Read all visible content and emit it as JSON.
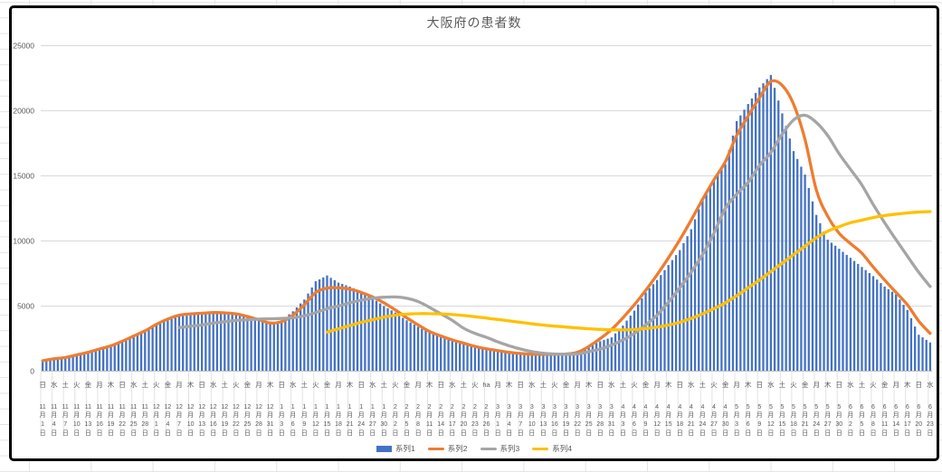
{
  "chart": {
    "title": "大阪府の患者数",
    "title_color": "#595959",
    "border_color": "#000000",
    "axis": {
      "y_tick_labels": [
        "0",
        "5000",
        "10000",
        "15000",
        "20000",
        "25000"
      ],
      "y_tick_values": [
        0,
        5000,
        10000,
        15000,
        20000,
        25000
      ],
      "y_max": 25000,
      "label_color": "#595959",
      "gridline_color": "#d9d9d9",
      "axis_line_color": "#bfbfbf",
      "tick_separator_color": "#e2e2e2"
    },
    "legend": [
      {
        "label": "系列1",
        "color": "#4472C4",
        "swatch": "bar"
      },
      {
        "label": "系列2",
        "color": "#ED7D31",
        "swatch": "line"
      },
      {
        "label": "系列3",
        "color": "#A5A5A5",
        "swatch": "line"
      },
      {
        "label": "系列4",
        "color": "#FFC000",
        "swatch": "line"
      }
    ]
  },
  "chart_data": {
    "type": "bar",
    "subtype": "combo-bar-and-lines",
    "title": "大阪府の患者数",
    "xlabel": "",
    "ylabel": "",
    "ylim": [
      0,
      25000
    ],
    "grid": "horizontal",
    "legend_position": "bottom",
    "x_tick_interval_days": 3,
    "x_labels_dow": [
      "日",
      "水",
      "土",
      "火",
      "金",
      "月",
      "木",
      "日",
      "水",
      "土",
      "火",
      "金",
      "月",
      "木",
      "日",
      "水",
      "土",
      "火",
      "金",
      "月",
      "木",
      "日",
      "水",
      "土",
      "火",
      "金",
      "月",
      "木",
      "日",
      "水",
      "土",
      "火",
      "金",
      "月",
      "木",
      "日",
      "水",
      "土",
      "火",
      "ha",
      "月",
      "木",
      "日",
      "水",
      "土",
      "火",
      "金",
      "月",
      "木",
      "日",
      "水",
      "土",
      "火",
      "金",
      "月",
      "木",
      "日",
      "水",
      "土",
      "火",
      "金",
      "月",
      "木",
      "日",
      "水",
      "土",
      "火",
      "金",
      "月",
      "木",
      "日",
      "水",
      "土",
      "火",
      "金",
      "月",
      "木",
      "日",
      "水"
    ],
    "x_labels_date": [
      "11月1日",
      "11月4日",
      "11月7日",
      "11月10日",
      "11月13日",
      "11月16日",
      "11月19日",
      "11月22日",
      "11月25日",
      "11月28日",
      "12月1日",
      "12月4日",
      "12月7日",
      "12月10日",
      "12月13日",
      "12月16日",
      "12月19日",
      "12月22日",
      "12月25日",
      "12月28日",
      "12月31日",
      "1月3日",
      "1月6日",
      "1月9日",
      "1月12日",
      "1月15日",
      "1月18日",
      "1月21日",
      "1月24日",
      "1月27日",
      "1月30日",
      "2月2日",
      "2月5日",
      "2月8日",
      "2月11日",
      "2月14日",
      "2月17日",
      "2月20日",
      "2月23日",
      "2月26日",
      "3月1日",
      "3月4日",
      "3月7日",
      "3月10日",
      "3月13日",
      "3月16日",
      "3月19日",
      "3月22日",
      "3月25日",
      "3月28日",
      "3月31日",
      "4月3日",
      "4月6日",
      "4月9日",
      "4月12日",
      "4月15日",
      "4月18日",
      "4月21日",
      "4月24日",
      "4月27日",
      "4月30日",
      "5月3日",
      "5月6日",
      "5月9日",
      "5月12日",
      "5月15日",
      "5月18日",
      "5月21日",
      "5月24日",
      "5月27日",
      "5月30日",
      "6月2日",
      "6月5日",
      "6月8日",
      "6月11日",
      "6月14日",
      "6月17日",
      "6月20日",
      "6月23日"
    ],
    "series": [
      {
        "name": "系列1",
        "type": "bar",
        "color": "#4472C4",
        "values": [
          850,
          950,
          1050,
          1200,
          1450,
          1650,
          2000,
          2350,
          2700,
          3050,
          3600,
          3900,
          4200,
          4300,
          4400,
          4500,
          4500,
          4400,
          4100,
          3900,
          3700,
          3900,
          4600,
          5500,
          6900,
          7350,
          6800,
          6500,
          6100,
          5600,
          5000,
          4500,
          3900,
          3400,
          2950,
          2600,
          2300,
          2050,
          1850,
          1700,
          1550,
          1450,
          1350,
          1250,
          1200,
          1250,
          1350,
          1550,
          1900,
          2300,
          2600,
          3500,
          4650,
          6050,
          7000,
          8150,
          9300,
          10900,
          13200,
          14750,
          15900,
          19200,
          20520,
          21790,
          22750,
          19800,
          16900,
          15100,
          12000,
          10100,
          9400,
          8700,
          8000,
          7300,
          6500,
          5900,
          4700,
          2800,
          2200
        ]
      },
      {
        "name": "系列2",
        "type": "line",
        "color": "#ED7D31",
        "values": [
          800,
          950,
          1050,
          1250,
          1450,
          1700,
          1950,
          2300,
          2700,
          3100,
          3600,
          4000,
          4300,
          4400,
          4450,
          4500,
          4480,
          4400,
          4200,
          3950,
          3700,
          3800,
          4300,
          5100,
          6050,
          6380,
          6400,
          6300,
          6050,
          5700,
          5250,
          4700,
          4100,
          3550,
          3050,
          2700,
          2400,
          2150,
          1900,
          1720,
          1580,
          1450,
          1360,
          1300,
          1290,
          1300,
          1320,
          1450,
          1900,
          2500,
          3200,
          4100,
          5100,
          6200,
          7400,
          8700,
          10100,
          11600,
          13200,
          14700,
          16100,
          18100,
          19600,
          21000,
          22250,
          21950,
          20500,
          17800,
          13900,
          11900,
          10600,
          9800,
          9060,
          8000,
          7000,
          6050,
          5100,
          3850,
          2900
        ]
      },
      {
        "name": "系列3",
        "type": "line",
        "color": "#A5A5A5",
        "values": [
          null,
          null,
          null,
          null,
          null,
          null,
          null,
          null,
          null,
          null,
          null,
          null,
          3350,
          3450,
          3550,
          3700,
          3800,
          3900,
          3950,
          4000,
          4020,
          4050,
          4100,
          4250,
          4500,
          4800,
          5000,
          5250,
          5450,
          5600,
          5680,
          5700,
          5600,
          5350,
          4900,
          4400,
          3900,
          3300,
          2900,
          2600,
          2250,
          1950,
          1700,
          1500,
          1380,
          1320,
          1300,
          1320,
          1500,
          1700,
          2000,
          2400,
          2900,
          3550,
          4300,
          5300,
          6400,
          7600,
          8950,
          10600,
          12500,
          13600,
          14500,
          15800,
          16800,
          18200,
          19300,
          19650,
          19100,
          18100,
          16700,
          15500,
          14300,
          12800,
          11400,
          10100,
          8830,
          7600,
          6500
        ]
      },
      {
        "name": "系列4",
        "type": "line",
        "color": "#FFC000",
        "values": [
          null,
          null,
          null,
          null,
          null,
          null,
          null,
          null,
          null,
          null,
          null,
          null,
          null,
          null,
          null,
          null,
          null,
          null,
          null,
          null,
          null,
          null,
          null,
          null,
          null,
          3000,
          3250,
          3500,
          3750,
          3950,
          4150,
          4300,
          4380,
          4420,
          4420,
          4400,
          4350,
          4280,
          4180,
          4080,
          3970,
          3860,
          3750,
          3640,
          3540,
          3460,
          3390,
          3320,
          3260,
          3210,
          3180,
          3170,
          3200,
          3270,
          3380,
          3540,
          3760,
          4050,
          4400,
          4800,
          5250,
          5800,
          6400,
          7000,
          7650,
          8300,
          8950,
          9600,
          10250,
          10750,
          11100,
          11400,
          11600,
          11800,
          11950,
          12060,
          12150,
          12220,
          12260
        ]
      }
    ]
  }
}
